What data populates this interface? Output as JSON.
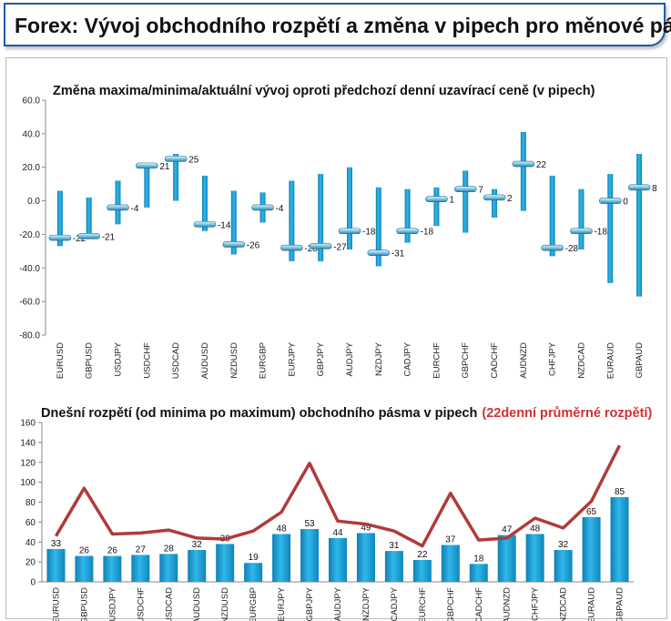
{
  "header": {
    "title": "Forex: Vývoj obchodního rozpětí a změna v pipech pro měnové páry"
  },
  "chart_data": [
    {
      "type": "range-bar",
      "title": "Změna maxima/minima/aktuální vývoj oproti předchozí denní uzavírací ceně (v pipech)",
      "ylim": [
        -80,
        60
      ],
      "yticks": [
        "60.0",
        "40.0",
        "20.0",
        "0.0",
        "-20.0",
        "-40.0",
        "-60.0",
        "-80.0"
      ],
      "categories": [
        "EURUSD",
        "GBPUSD",
        "USDJPY",
        "USDCHF",
        "USDCAD",
        "AUDUSD",
        "NZDUSD",
        "EURGBP",
        "EURJPY",
        "GBPJPY",
        "AUDJPY",
        "NZDJPY",
        "CADJPY",
        "EURCHF",
        "GBPCHF",
        "CADCHF",
        "AUDNZD",
        "CHFJPY",
        "NZDCAD",
        "EURAUD",
        "GBPAUD"
      ],
      "high": [
        6,
        2,
        12,
        22,
        28,
        15,
        6,
        5,
        12,
        16,
        20,
        8,
        7,
        8,
        18,
        7,
        41,
        15,
        7,
        16,
        28
      ],
      "low": [
        -27,
        -22,
        -14,
        -4,
        0,
        -18,
        -32,
        -13,
        -36,
        -36,
        -29,
        -39,
        -25,
        -15,
        -19,
        -10,
        -6,
        -33,
        -29,
        -49,
        -57
      ],
      "current": [
        -22,
        -21,
        -4,
        21,
        25,
        -14,
        -26,
        -4,
        -28,
        -27,
        -18,
        -31,
        -18,
        1,
        7,
        2,
        22,
        -28,
        -18,
        0,
        8
      ],
      "labels": [
        "-22",
        "-21",
        "-4",
        "21",
        "25",
        "-14",
        "-26",
        "-4",
        "-28",
        "-27",
        "-18",
        "-31",
        "-18",
        "1",
        "7",
        "2",
        "22",
        "-28",
        "-18",
        "0",
        "8"
      ],
      "bar_color": "#1b9fd6"
    },
    {
      "type": "bar+line",
      "title": "Dnešní rozpětí (od minima po maximum) obchodního pásma v pipech",
      "title_highlight": "(22denní průměrné rozpětí)",
      "ylim": [
        0,
        160
      ],
      "yticks": [
        "160",
        "140",
        "120",
        "100",
        "80",
        "60",
        "40",
        "20",
        "0"
      ],
      "categories": [
        "EURUSD",
        "GBPUSD",
        "USDJPY",
        "USDCHF",
        "USDCAD",
        "AUDUSD",
        "NZDUSD",
        "EURGBP",
        "EURJPY",
        "GBPJPY",
        "AUDJPY",
        "NZDJPY",
        "CADJPY",
        "EURCHF",
        "GBPCHF",
        "CADCHF",
        "AUDNZD",
        "CHFJPY",
        "NZDCAD",
        "EURAUD",
        "GBPAUD"
      ],
      "series": [
        {
          "values": [
            33,
            26,
            26,
            27,
            28,
            32,
            38,
            19,
            48,
            53,
            44,
            49,
            31,
            22,
            37,
            18,
            47,
            48,
            32,
            65,
            85
          ]
        },
        {
          "name": "22denní průměrné rozpětí",
          "values": [
            46,
            94,
            48,
            49,
            52,
            44,
            43,
            51,
            70,
            119,
            61,
            58,
            51,
            36,
            89,
            42,
            44,
            64,
            54,
            81,
            137
          ]
        }
      ],
      "labels": [
        "33",
        "26",
        "26",
        "27",
        "28",
        "32",
        "38",
        "19",
        "48",
        "53",
        "44",
        "49",
        "31",
        "22",
        "37",
        "18",
        "47",
        "48",
        "32",
        "65",
        "85"
      ],
      "bar_color": "#1b9fd6",
      "line_color": "#b03a3a",
      "highlight_color": "#d03131"
    }
  ]
}
